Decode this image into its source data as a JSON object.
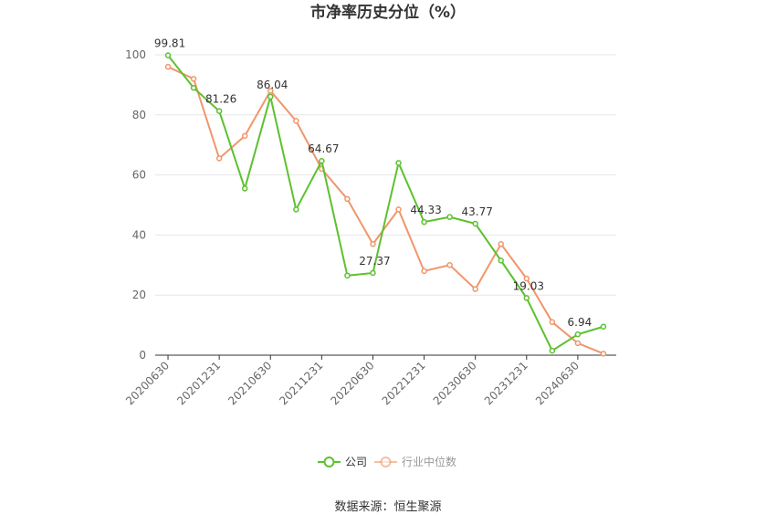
{
  "chart_data": {
    "type": "line",
    "title": "市净率历史分位（%）",
    "xlabel": "",
    "ylabel": "",
    "ylim": [
      0,
      100
    ],
    "yticks": [
      0,
      20,
      40,
      60,
      80,
      100
    ],
    "x": [
      "20200630",
      "20200930",
      "20201231",
      "20210331",
      "20210630",
      "20210930",
      "20211231",
      "20220331",
      "20220630",
      "20220930",
      "20221231",
      "20230331",
      "20230630",
      "20230930",
      "20231231",
      "20240331",
      "20240630",
      "20240930"
    ],
    "xtick_labels": [
      "20200630",
      "20201231",
      "20210630",
      "20211231",
      "20220630",
      "20221231",
      "20230630",
      "20231231",
      "20240630"
    ],
    "grid": true,
    "legend_position": "bottom",
    "series": [
      {
        "name": "公司",
        "color": "#5cc12f",
        "values": [
          99.81,
          89,
          81.26,
          55.5,
          86.04,
          48.5,
          64.67,
          26.5,
          27.37,
          64,
          44.33,
          46,
          43.77,
          31.5,
          19.03,
          1.5,
          6.94,
          9.5
        ],
        "data_labels": [
          "99.81",
          "",
          "81.26",
          "",
          "86.04",
          "",
          "64.67",
          "",
          "27.37",
          "",
          "44.33",
          "",
          "43.77",
          "",
          "19.03",
          "",
          "6.94",
          ""
        ]
      },
      {
        "name": "行业中位数",
        "color": "#f0966b",
        "values": [
          96,
          92,
          65.5,
          73,
          88,
          78,
          62,
          52,
          37,
          48.5,
          28,
          30,
          22,
          37,
          25.5,
          11,
          4,
          0.5
        ]
      }
    ]
  },
  "source": "数据来源：恒生聚源"
}
